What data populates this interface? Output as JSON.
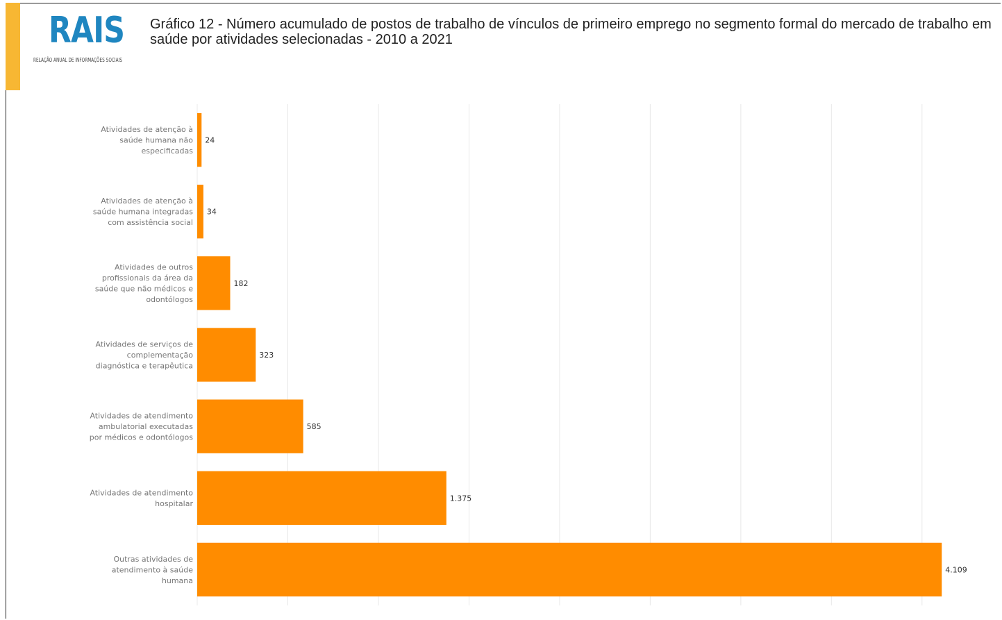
{
  "header": {
    "logo_text": "RAIS",
    "logo_subtitle": "RELAÇÃO ANUAL DE INFORMAÇÕES SOCIAIS",
    "title": "Gráfico 12 - Número acumulado de postos de trabalho de vínculos de primeiro emprego no segmento formal do mercado de trabalho em saúde por atividades selecionadas - 2010 a 2021"
  },
  "colors": {
    "bar": "#ff8c00",
    "accent": "#f7b733",
    "logo": "#1f86c0",
    "grid": "#e8e8e8"
  },
  "chart_data": {
    "type": "bar",
    "orientation": "horizontal",
    "title": "",
    "xlabel": "",
    "ylabel": "",
    "xlim": [
      0,
      4200
    ],
    "grid": true,
    "categories": [
      [
        "Atividades de atenção à",
        "saúde humana não",
        "especificadas"
      ],
      [
        "Atividades de atenção à",
        "saúde humana integradas",
        "com assistência social"
      ],
      [
        "Atividades de outros",
        "profissionais da área da",
        "saúde que não médicos e",
        "odontólogos"
      ],
      [
        "Atividades de serviços de",
        "complementação",
        "diagnóstica e terapêutica"
      ],
      [
        "Atividades de atendimento",
        "ambulatorial executadas",
        "por médicos e odontólogos"
      ],
      [
        "Atividades de atendimento",
        "hospitalar"
      ],
      [
        "Outras atividades de",
        "atendimento à saúde",
        "humana"
      ]
    ],
    "values": [
      24,
      34,
      182,
      323,
      585,
      1375,
      4109
    ],
    "value_labels": [
      "24",
      "34",
      "182",
      "323",
      "585",
      "1.375",
      "4.109"
    ]
  }
}
